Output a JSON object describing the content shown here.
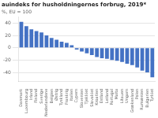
{
  "chart_data": {
    "type": "bar",
    "title": "auindeks for husholdningernes forbrug, 2019*",
    "subtitle": "%, EU = 100",
    "categories": [
      "Danmark",
      "Luxembourg",
      "Irland",
      "Finland",
      "Sverige",
      "Nederlandene",
      "Belgien",
      "Østrig",
      "Tyskland",
      "Frankrig",
      "Italien",
      "Cypern",
      "Slovenien",
      "Tjekkiet",
      "Slovakiet",
      "Kroatien",
      "Estland",
      "Letland",
      "Portugal",
      "Malta",
      "Litauen",
      "Ungarn",
      "Grækenland",
      "Polen",
      "Rumænien",
      "Bulgarien",
      "Tyrkiet"
    ],
    "values": [
      42,
      35,
      30,
      27,
      25,
      20,
      16,
      13,
      10,
      8,
      4,
      -3,
      -6,
      -9,
      -12,
      -15,
      -17,
      -18,
      -20,
      -21,
      -23,
      -26,
      -28,
      -32,
      -37,
      -40,
      -48
    ],
    "color": "#4472C4",
    "ylim": [
      -55,
      50
    ],
    "yticks": [
      -40,
      -20,
      0,
      20,
      40
    ],
    "grid": true
  }
}
